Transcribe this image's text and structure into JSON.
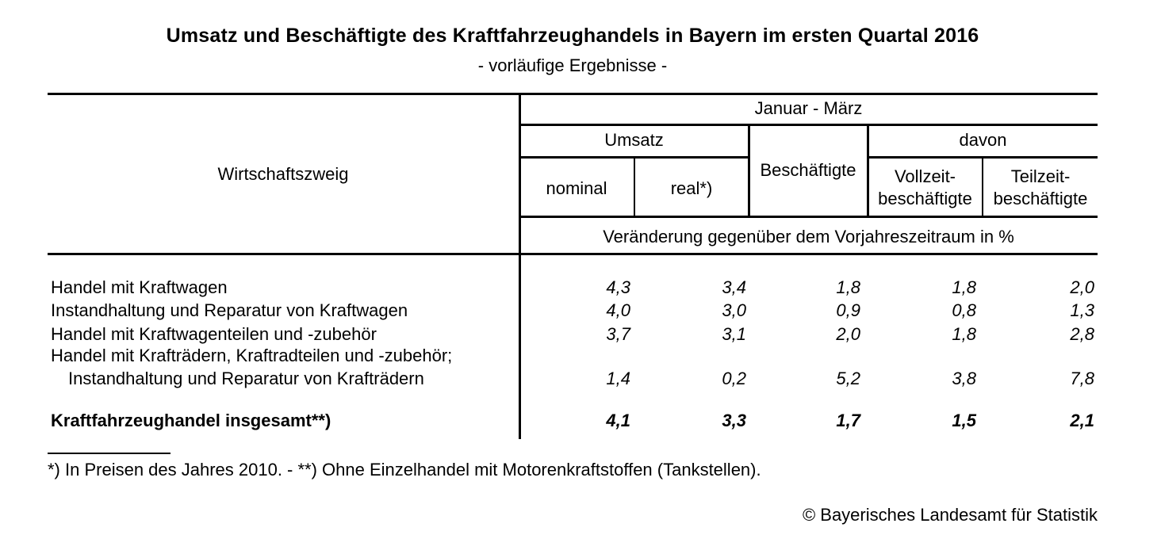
{
  "colors": {
    "text": "#000000",
    "background": "#ffffff",
    "rules": "#000000"
  },
  "header": {
    "title": "Umsatz und Beschäftigte des Kraftfahrzeughandels in Bayern im ersten Quartal 2016",
    "subtitle": "- vorläufige Ergebnisse -"
  },
  "table": {
    "stub_header": "Wirtschaftszweig",
    "period_header": "Januar - März",
    "group_umsatz": "Umsatz",
    "group_davon": "davon",
    "col_beschaeftigte": "Beschäftigte",
    "col_nominal": "nominal",
    "col_real": "real*)",
    "col_vollzeit_line1": "Vollzeit-",
    "col_vollzeit_line2": "beschäftigte",
    "col_teilzeit_line1": "Teilzeit-",
    "col_teilzeit_line2": "beschäftigte",
    "unit_header": "Veränderung gegenüber dem Vorjahreszeitraum in %",
    "rows": [
      {
        "label": "Handel mit Kraftwagen",
        "nominal": "4,3",
        "real": "3,4",
        "beschaeftigte": "1,8",
        "vollzeit": "1,8",
        "teilzeit": "2,0"
      },
      {
        "label": "Instandhaltung und Reparatur von Kraftwagen",
        "nominal": "4,0",
        "real": "3,0",
        "beschaeftigte": "0,9",
        "vollzeit": "0,8",
        "teilzeit": "1,3"
      },
      {
        "label": "Handel mit Kraftwagenteilen und -zubehör",
        "nominal": "3,7",
        "real": "3,1",
        "beschaeftigte": "2,0",
        "vollzeit": "1,8",
        "teilzeit": "2,8"
      },
      {
        "label": "Handel mit Krafträdern, Kraftradteilen und -zubehör;",
        "label_line2": "Instandhaltung und Reparatur von Krafträdern",
        "nominal": "1,4",
        "real": "0,2",
        "beschaeftigte": "5,2",
        "vollzeit": "3,8",
        "teilzeit": "7,8"
      }
    ],
    "total_row": {
      "label": "Kraftfahrzeughandel insgesamt**)",
      "nominal": "4,1",
      "real": "3,3",
      "beschaeftigte": "1,7",
      "vollzeit": "1,5",
      "teilzeit": "2,1"
    }
  },
  "footnote": "*) In Preisen des Jahres 2010. - **) Ohne Einzelhandel mit Motorenkraftstoffen (Tankstellen).",
  "copyright": "© Bayerisches Landesamt für Statistik"
}
